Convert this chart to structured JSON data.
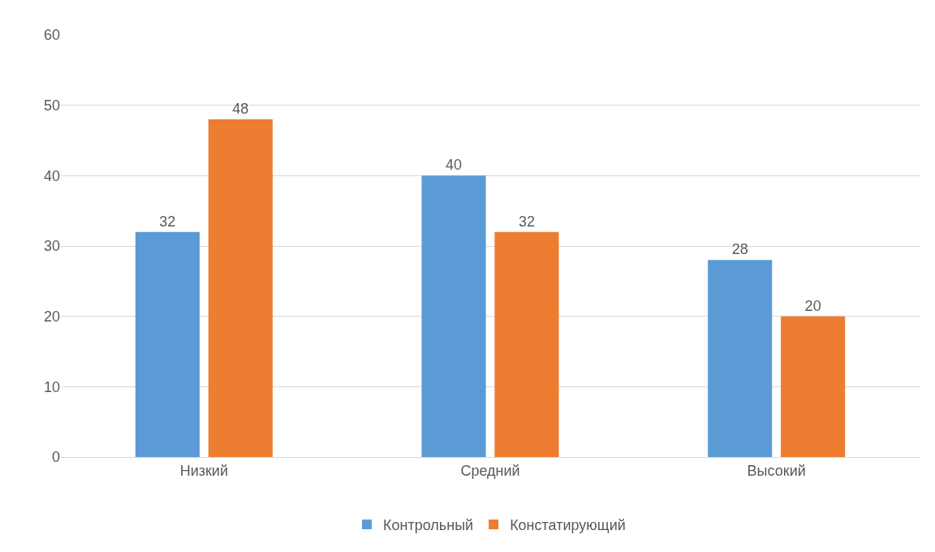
{
  "chart_data": {
    "type": "bar",
    "categories": [
      "Низкий",
      "Средний",
      "Высокий"
    ],
    "series": [
      {
        "name": "Контрольный",
        "color": "#5b9bd5",
        "values": [
          32,
          40,
          28
        ]
      },
      {
        "name": "Констатирующий",
        "color": "#ed7d31",
        "values": [
          48,
          32,
          20
        ]
      }
    ],
    "ylim": [
      0,
      60
    ],
    "yticks": [
      0,
      10,
      20,
      30,
      40,
      50,
      60
    ],
    "grid": "y",
    "legend": "bottom",
    "data_labels": true
  }
}
